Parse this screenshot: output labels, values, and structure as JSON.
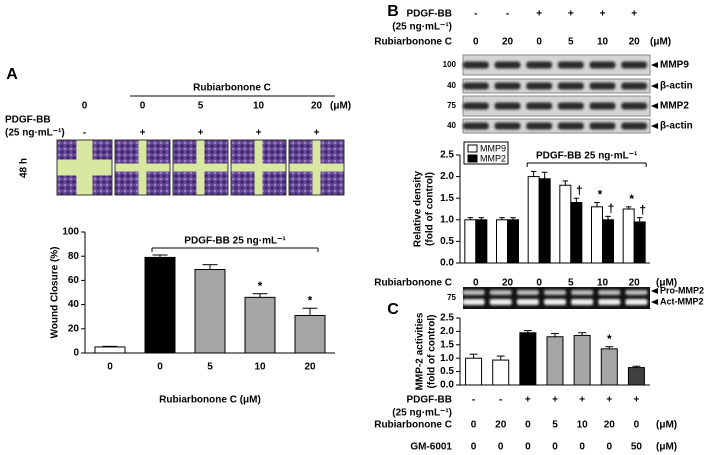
{
  "chart_data": [
    {
      "type": "bar",
      "panel_label": "A",
      "header": {
        "title": "Rubiarbonone C",
        "time": "48 h",
        "rows": [
          {
            "values": [
              "0",
              "0",
              "5",
              "10",
              "20"
            ],
            "unit": "(μM)"
          },
          {
            "label": "PDGF-BB",
            "sublabel": "(25 ng·mL⁻¹)",
            "values": [
              "-",
              "+",
              "+",
              "+",
              "+"
            ]
          }
        ]
      },
      "bracket_label": "PDGF-BB 25 ng·mL⁻¹",
      "y_label": [
        "Wound Closure (%)"
      ],
      "x_label": "Rubiarbonone C (μM)",
      "categories": [
        "0",
        "0",
        "5",
        "10",
        "20"
      ],
      "values": [
        5,
        79,
        69,
        46,
        31
      ],
      "errors": [
        0.5,
        2,
        4,
        3,
        6
      ],
      "significance": [
        null,
        null,
        null,
        "*",
        "*"
      ],
      "colors": [
        "#ffffff",
        "#000000",
        "#a6a6a6",
        "#a6a6a6",
        "#a6a6a6"
      ],
      "ylim": [
        0,
        100
      ],
      "yticks": [
        0,
        20,
        40,
        60,
        80,
        100
      ]
    },
    {
      "type": "grouped_bar",
      "panel_label": "B",
      "rows_above": [
        {
          "label": "PDGF-BB",
          "sublabel": "(25 ng·mL⁻¹)",
          "values": [
            "-",
            "-",
            "+",
            "+",
            "+",
            "+"
          ]
        },
        {
          "label": "Rubiarbonone C",
          "values": [
            "0",
            "20",
            "0",
            "5",
            "10",
            "20"
          ],
          "unit": "(μM)"
        }
      ],
      "blots": [
        {
          "label": "MMP9",
          "marker": 100
        },
        {
          "label": "β-actin",
          "marker": 40
        },
        {
          "label": "MMP2",
          "marker": 75
        },
        {
          "label": "β-actin",
          "marker": 40
        }
      ],
      "bracket_label": "PDGF-BB 25 ng·mL⁻¹",
      "y_label": [
        "Relative density",
        "(fold of control)"
      ],
      "x_row_label": "Rubiarbonone C",
      "x_unit": "(μM)",
      "categories": [
        "0",
        "20",
        "0",
        "5",
        "10",
        "20"
      ],
      "legend": "upper left",
      "series": [
        {
          "name": "MMP9",
          "color": "#ffffff",
          "values": [
            1.0,
            1.0,
            2.0,
            1.8,
            1.3,
            1.25
          ],
          "errors": [
            0.05,
            0.05,
            0.12,
            0.1,
            0.1,
            0.05
          ],
          "significance": [
            null,
            null,
            null,
            null,
            "*",
            "*"
          ]
        },
        {
          "name": "MMP2",
          "color": "#000000",
          "values": [
            1.0,
            1.0,
            1.95,
            1.4,
            1.0,
            0.95
          ],
          "errors": [
            0.05,
            0.05,
            0.15,
            0.1,
            0.08,
            0.1
          ],
          "significance": [
            null,
            null,
            null,
            "†",
            "†",
            "†"
          ]
        }
      ],
      "ylim": [
        0,
        2.5
      ],
      "yticks": [
        {
          "value": 0,
          "label": "0.0"
        },
        0.5,
        {
          "value": 1,
          "label": "1.0"
        },
        1.5,
        {
          "value": 2,
          "label": "2.0"
        },
        2.5
      ]
    },
    {
      "type": "bar",
      "panel_label": "C",
      "gel": {
        "marker": 75,
        "labels": [
          "Pro-MMP2",
          "Act-MMP2"
        ]
      },
      "y_label": [
        "MMP-2 activities",
        "(fold of control)"
      ],
      "values": [
        1.0,
        0.93,
        1.95,
        1.8,
        1.85,
        1.35,
        0.65
      ],
      "errors": [
        0.15,
        0.15,
        0.08,
        0.12,
        0.1,
        0.08,
        0.05
      ],
      "significance": [
        null,
        null,
        null,
        null,
        null,
        "*",
        null
      ],
      "colors": [
        "#ffffff",
        "#ffffff",
        "#000000",
        "#a6a6a6",
        "#a6a6a6",
        "#a6a6a6",
        "#404040"
      ],
      "rows_below": [
        {
          "label": "PDGF-BB",
          "sublabel": "(25 ng·mL⁻¹)",
          "values": [
            "-",
            "-",
            "+",
            "+",
            "+",
            "+",
            "+"
          ]
        },
        {
          "label": "Rubiarbonone C",
          "values": [
            "0",
            "20",
            "0",
            "5",
            "10",
            "20",
            "0"
          ],
          "unit": "(μM)"
        },
        {
          "label": "GM-6001",
          "values": [
            "0",
            "0",
            "0",
            "0",
            "0",
            "0",
            "50"
          ],
          "unit": "(μM)"
        }
      ],
      "ylim": [
        0,
        2.5
      ],
      "yticks": [
        {
          "value": 0,
          "label": "0.0"
        },
        0.5,
        {
          "value": 1,
          "label": "1.0"
        },
        1.5,
        {
          "value": 2,
          "label": "2.0"
        },
        2.5
      ]
    }
  ]
}
